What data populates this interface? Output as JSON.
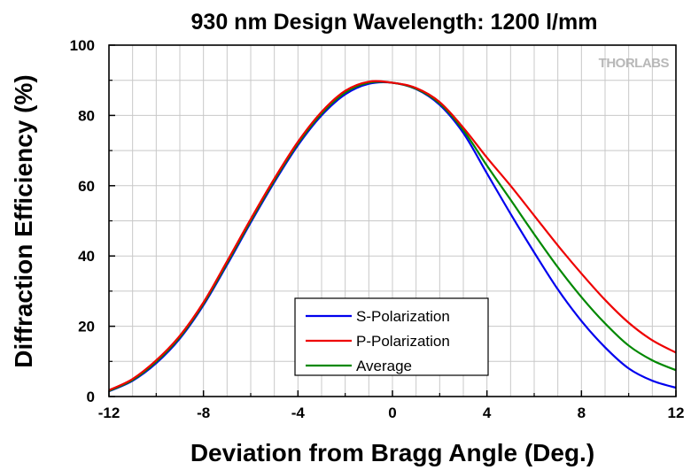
{
  "chart_data": {
    "type": "line",
    "title": "930 nm Design Wavelength: 1200 l/mm",
    "xlabel": "Deviation from Bragg Angle (Deg.)",
    "ylabel": "Diffraction Efficiency (%)",
    "xlim": [
      -12,
      12
    ],
    "ylim": [
      0,
      100
    ],
    "xticks": [
      -12,
      -8,
      -4,
      0,
      4,
      8,
      12
    ],
    "yticks": [
      0,
      20,
      40,
      60,
      80,
      100
    ],
    "grid": true,
    "legend_position": "bottom-center",
    "watermark": "THORLABS",
    "series": [
      {
        "name": "S-Polarization",
        "color": "#0000ee",
        "x": [
          -12,
          -11,
          -10,
          -9,
          -8,
          -7,
          -6,
          -5,
          -4,
          -3,
          -2,
          -1,
          0,
          1,
          2,
          3,
          4,
          5,
          6,
          7,
          8,
          9,
          10,
          11,
          12
        ],
        "y": [
          1.5,
          4.5,
          9.5,
          16.5,
          26,
          37.5,
          49.5,
          61,
          71.5,
          80,
          86,
          89,
          89.3,
          87.5,
          83,
          75,
          63.5,
          52,
          41,
          30.5,
          21.5,
          14,
          8,
          4.5,
          2.5
        ]
      },
      {
        "name": "P-Polarization",
        "color": "#ee0000",
        "x": [
          -12,
          -11,
          -10,
          -9,
          -8,
          -7,
          -6,
          -5,
          -4,
          -3,
          -2,
          -1,
          0,
          1,
          2,
          3,
          4,
          5,
          6,
          7,
          8,
          9,
          10,
          11,
          12
        ],
        "y": [
          1.8,
          5,
          10.3,
          17.3,
          26.8,
          38.5,
          50.5,
          62,
          72.5,
          81,
          87,
          89.6,
          89.3,
          87.8,
          83.8,
          76.5,
          68,
          60,
          51.5,
          43,
          35,
          27.5,
          21,
          16,
          12.5
        ]
      },
      {
        "name": "Average",
        "color": "#008800",
        "x": [
          -12,
          -11,
          -10,
          -9,
          -8,
          -7,
          -6,
          -5,
          -4,
          -3,
          -2,
          -1,
          0,
          1,
          2,
          3,
          4,
          5,
          6,
          7,
          8,
          9,
          10,
          11,
          12
        ],
        "y": [
          1.6,
          4.7,
          9.9,
          16.9,
          26.4,
          38,
          50,
          61.5,
          72,
          80.5,
          86.5,
          89.3,
          89.3,
          87.6,
          83.4,
          75.8,
          65.7,
          56,
          46.2,
          36.8,
          28.3,
          20.8,
          14.5,
          10.3,
          7.5
        ]
      }
    ]
  }
}
